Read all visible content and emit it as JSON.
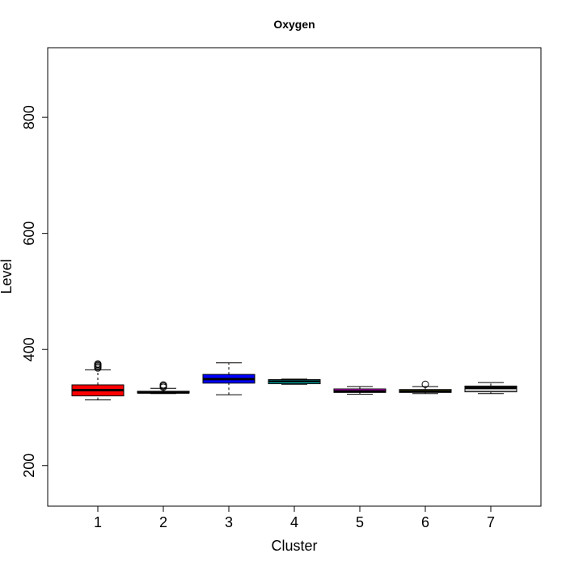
{
  "chart_data": {
    "type": "box",
    "title": "Oxygen",
    "xlabel": "Cluster",
    "ylabel": "Level",
    "ylim": [
      130,
      920
    ],
    "yticks": [
      200,
      400,
      600,
      800
    ],
    "categories": [
      "1",
      "2",
      "3",
      "4",
      "5",
      "6",
      "7"
    ],
    "boxes": [
      {
        "category": "1",
        "color": "#ff0000",
        "whisker_low": 313,
        "q1": 320,
        "median": 330,
        "q3": 339,
        "whisker_high": 365,
        "outliers": [
          368,
          370,
          372,
          374,
          375
        ]
      },
      {
        "category": "2",
        "color": "#000000",
        "whisker_low": 324,
        "q1": 325,
        "median": 326,
        "q3": 328,
        "whisker_high": 333,
        "outliers": [
          335,
          337,
          339
        ]
      },
      {
        "category": "3",
        "color": "#0000ff",
        "whisker_low": 322,
        "q1": 342,
        "median": 349,
        "q3": 357,
        "whisker_high": 377,
        "outliers": []
      },
      {
        "category": "4",
        "color": "#00ffff",
        "whisker_low": 340,
        "q1": 341,
        "median": 345,
        "q3": 348,
        "whisker_high": 349,
        "outliers": []
      },
      {
        "category": "5",
        "color": "#ff00ff",
        "whisker_low": 323,
        "q1": 326,
        "median": 328,
        "q3": 332,
        "whisker_high": 336,
        "outliers": []
      },
      {
        "category": "6",
        "color": "#e6e600",
        "whisker_low": 324,
        "q1": 326,
        "median": 328,
        "q3": 331,
        "whisker_high": 336,
        "outliers": [
          340
        ]
      },
      {
        "category": "7",
        "color": "#bebebe",
        "whisker_low": 324,
        "q1": 327,
        "median": 334,
        "q3": 337,
        "whisker_high": 343,
        "outliers": []
      }
    ]
  }
}
